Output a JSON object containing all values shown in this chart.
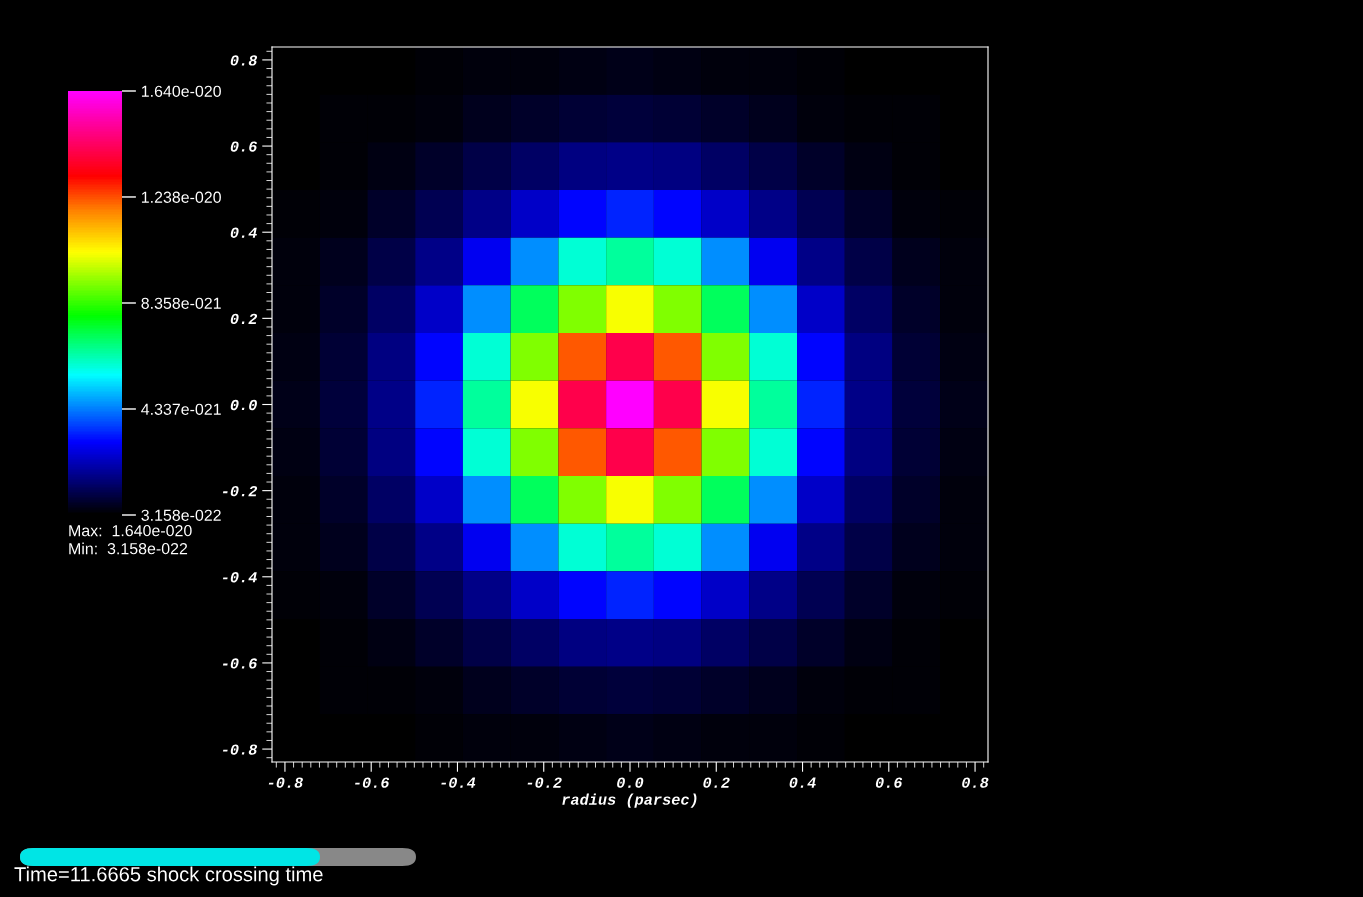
{
  "chart_data": {
    "type": "heatmap",
    "xlabel": "radius (parsec)",
    "xlim": [
      -0.83,
      0.83
    ],
    "ylim": [
      -0.83,
      0.83
    ],
    "xticks": [
      {
        "value": -0.8,
        "label": "-0.8"
      },
      {
        "value": -0.6,
        "label": "-0.6"
      },
      {
        "value": -0.4,
        "label": "-0.4"
      },
      {
        "value": -0.2,
        "label": "-0.2"
      },
      {
        "value": 0,
        "label": "0.0"
      },
      {
        "value": 0.2,
        "label": "0.2"
      },
      {
        "value": 0.4,
        "label": "0.4"
      },
      {
        "value": 0.6,
        "label": "0.6"
      },
      {
        "value": 0.8,
        "label": "0.8"
      }
    ],
    "yticks": [
      {
        "value": -0.8,
        "label": "-0.8"
      },
      {
        "value": -0.6,
        "label": "-0.6"
      },
      {
        "value": -0.4,
        "label": "-0.4"
      },
      {
        "value": -0.2,
        "label": "-0.2"
      },
      {
        "value": 0,
        "label": "0.0"
      },
      {
        "value": 0.2,
        "label": "0.2"
      },
      {
        "value": 0.4,
        "label": "0.4"
      },
      {
        "value": 0.6,
        "label": "0.6"
      },
      {
        "value": 0.8,
        "label": "0.8"
      }
    ],
    "clim": [
      3.158e-22,
      1.64e-20
    ],
    "cticks": [
      {
        "value": 1.64e-20,
        "label": "1.640e-020"
      },
      {
        "value": 1.238e-20,
        "label": "1.238e-020"
      },
      {
        "value": 8.358e-21,
        "label": "8.358e-021"
      },
      {
        "value": 4.337e-21,
        "label": "4.337e-021"
      },
      {
        "value": 3.158e-22,
        "label": "3.158e-022"
      }
    ],
    "cells": [
      [
        3.2e-22,
        3.4e-22,
        3.7e-22,
        4e-22,
        4.5e-22,
        5e-22,
        5.5e-22,
        6e-22,
        5.5e-22,
        5e-22,
        4.5e-22,
        4e-22,
        3.7e-22,
        3.4e-22,
        3.2e-22
      ],
      [
        3.4e-22,
        3.8e-22,
        4.3e-22,
        5e-22,
        6.5e-22,
        8e-22,
        9e-22,
        1e-21,
        9e-22,
        8e-22,
        6.5e-22,
        5e-22,
        4.3e-22,
        3.8e-22,
        3.4e-22
      ],
      [
        3.7e-22,
        4.3e-22,
        5.5e-22,
        8e-22,
        1.1e-21,
        1.4e-21,
        1.7e-21,
        1.8e-21,
        1.7e-21,
        1.4e-21,
        1.1e-21,
        8e-22,
        5.5e-22,
        4.3e-22,
        3.7e-22
      ],
      [
        4e-22,
        5e-22,
        8e-22,
        1.25e-21,
        1.8e-21,
        2.5e-21,
        3.1e-21,
        3.4e-21,
        3.1e-21,
        2.5e-21,
        1.8e-21,
        1.25e-21,
        8e-22,
        5e-22,
        4e-22
      ],
      [
        4.5e-22,
        6.5e-22,
        1.1e-21,
        1.8e-21,
        2.9e-21,
        4.5e-21,
        6e-21,
        6.5e-21,
        6e-21,
        4.5e-21,
        2.9e-21,
        1.8e-21,
        1.1e-21,
        6.5e-22,
        4.5e-22
      ],
      [
        5e-22,
        8e-22,
        1.4e-21,
        2.5e-21,
        4.5e-21,
        7.1e-21,
        9.1e-21,
        1.02e-20,
        9.1e-21,
        7.1e-21,
        4.5e-21,
        2.5e-21,
        1.4e-21,
        8e-22,
        5e-22
      ],
      [
        5.5e-22,
        9e-22,
        1.7e-21,
        3.1e-21,
        6e-21,
        9.1e-21,
        1.23e-20,
        1.41e-20,
        1.23e-20,
        9.1e-21,
        6e-21,
        3.1e-21,
        1.7e-21,
        9e-22,
        5.5e-22
      ],
      [
        6e-22,
        1e-21,
        1.8e-21,
        3.4e-21,
        6.5e-21,
        1.02e-20,
        1.41e-20,
        1.64e-20,
        1.41e-20,
        1.02e-20,
        6.5e-21,
        3.4e-21,
        1.8e-21,
        1e-21,
        6e-22
      ],
      [
        5.5e-22,
        9e-22,
        1.7e-21,
        3.1e-21,
        6e-21,
        9.1e-21,
        1.23e-20,
        1.41e-20,
        1.23e-20,
        9.1e-21,
        6e-21,
        3.1e-21,
        1.7e-21,
        9e-22,
        5.5e-22
      ],
      [
        5e-22,
        8e-22,
        1.4e-21,
        2.5e-21,
        4.5e-21,
        7.1e-21,
        9.1e-21,
        1.02e-20,
        9.1e-21,
        7.1e-21,
        4.5e-21,
        2.5e-21,
        1.4e-21,
        8e-22,
        5e-22
      ],
      [
        4.5e-22,
        6.5e-22,
        1.1e-21,
        1.8e-21,
        2.9e-21,
        4.5e-21,
        6e-21,
        6.5e-21,
        6e-21,
        4.5e-21,
        2.9e-21,
        1.8e-21,
        1.1e-21,
        6.5e-22,
        4.5e-22
      ],
      [
        4e-22,
        5e-22,
        8e-22,
        1.25e-21,
        1.8e-21,
        2.5e-21,
        3.1e-21,
        3.4e-21,
        3.1e-21,
        2.5e-21,
        1.8e-21,
        1.25e-21,
        8e-22,
        5e-22,
        4e-22
      ],
      [
        3.7e-22,
        4.3e-22,
        5.5e-22,
        8e-22,
        1.1e-21,
        1.4e-21,
        1.7e-21,
        1.8e-21,
        1.7e-21,
        1.4e-21,
        1.1e-21,
        8e-22,
        5.5e-22,
        4.3e-22,
        3.7e-22
      ],
      [
        3.4e-22,
        3.8e-22,
        4.3e-22,
        5e-22,
        6.5e-22,
        8e-22,
        9e-22,
        1e-21,
        9e-22,
        8e-22,
        6.5e-22,
        5e-22,
        4.3e-22,
        3.8e-22,
        3.4e-22
      ],
      [
        3.2e-22,
        3.4e-22,
        3.7e-22,
        4e-22,
        4.5e-22,
        5e-22,
        5.5e-22,
        6e-22,
        5.5e-22,
        5e-22,
        4.5e-22,
        4e-22,
        3.7e-22,
        3.4e-22,
        3.2e-22
      ]
    ],
    "annotations": [
      "Max:  1.640e-020",
      "Min:  3.158e-022",
      "Time=11.6665 shock crossing time"
    ]
  }
}
